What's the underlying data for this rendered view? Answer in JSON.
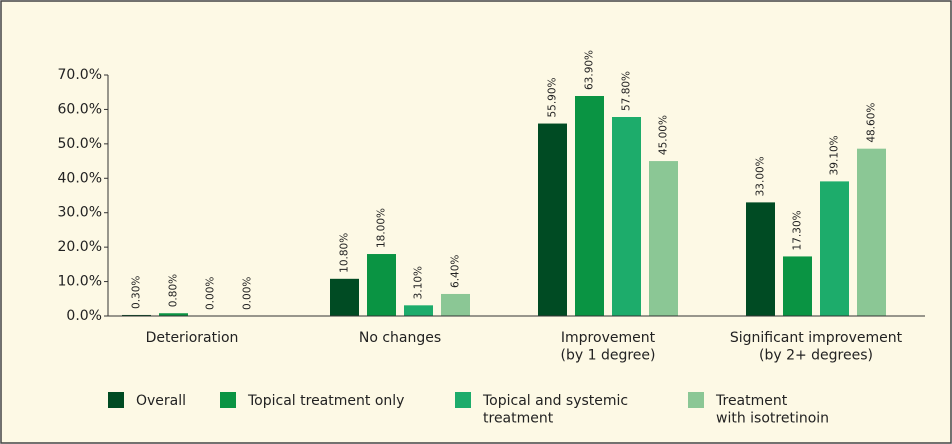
{
  "chart_data": {
    "type": "bar",
    "categories": [
      "Deterioration",
      "No changes",
      "Improvement\n(by 1 degree)",
      "Significant improvement\n(by 2+ degrees)"
    ],
    "series": [
      {
        "name": "Overall",
        "color": "#004b23",
        "values": [
          0.3,
          10.8,
          55.9,
          33.0
        ],
        "value_labels": [
          "0.30%",
          "10.80%",
          "55.90%",
          "33.00%"
        ]
      },
      {
        "name": "Topical treatment only",
        "color": "#0a9443",
        "values": [
          0.8,
          18.0,
          63.9,
          17.3
        ],
        "value_labels": [
          "0.80%",
          "18.00%",
          "63.90%",
          "17.30%"
        ]
      },
      {
        "name": "Topical and systemic\ntreatment",
        "color": "#1dac6b",
        "values": [
          0.0,
          3.1,
          57.8,
          39.1
        ],
        "value_labels": [
          "0.00%",
          "3.10%",
          "57.80%",
          "39.10%"
        ]
      },
      {
        "name": "Treatment\nwith isotretinoin",
        "color": "#8bc795",
        "values": [
          0.0,
          6.4,
          45.0,
          48.6
        ],
        "value_labels": [
          "0.00%",
          "6.40%",
          "45.00%",
          "48.60%"
        ]
      }
    ],
    "ylim": [
      0,
      70
    ],
    "yticks": [
      {
        "value": 0,
        "label": "0.0%"
      },
      {
        "value": 10,
        "label": "10.0%"
      },
      {
        "value": 20,
        "label": "20.0%"
      },
      {
        "value": 30,
        "label": "30.0%"
      },
      {
        "value": 40,
        "label": "40.0%"
      },
      {
        "value": 50,
        "label": "50.0%"
      },
      {
        "value": 60,
        "label": "60.0%"
      },
      {
        "value": 70,
        "label": "70.0%"
      }
    ]
  }
}
